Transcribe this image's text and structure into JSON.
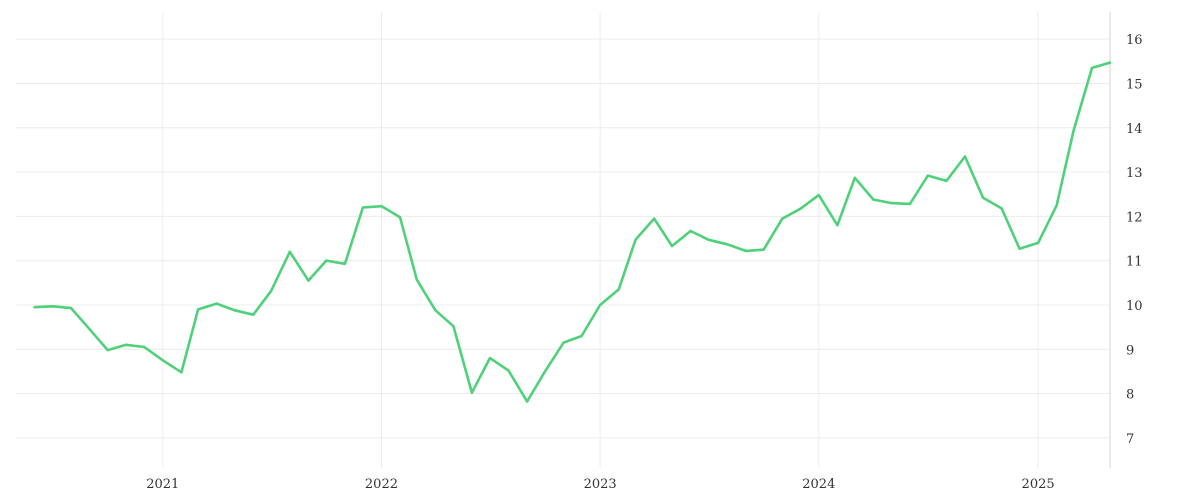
{
  "colors": {
    "series": "#4fd17a",
    "grid": "#ececec",
    "axis": "#d6d6d6",
    "text": "#333333"
  },
  "chart_data": {
    "type": "line",
    "title": "",
    "xlabel": "",
    "ylabel": "",
    "grid": true,
    "y_axis_side": "right",
    "xlim": [
      "2020-05-01",
      "2025-05-01"
    ],
    "ylim": [
      6.5,
      16.5
    ],
    "y_ticks": [
      7,
      8,
      9,
      10,
      11,
      12,
      13,
      14,
      15,
      16
    ],
    "x_ticks": [
      {
        "date": "2021-01-01",
        "label": "2021"
      },
      {
        "date": "2022-01-01",
        "label": "2022"
      },
      {
        "date": "2023-01-01",
        "label": "2023"
      },
      {
        "date": "2024-01-01",
        "label": "2024"
      },
      {
        "date": "2025-01-01",
        "label": "2025"
      }
    ],
    "series": [
      {
        "points": [
          [
            "2020-06-01",
            9.95
          ],
          [
            "2020-07-01",
            9.97
          ],
          [
            "2020-08-01",
            9.93
          ],
          [
            "2020-09-01",
            9.45
          ],
          [
            "2020-10-01",
            8.98
          ],
          [
            "2020-11-01",
            9.1
          ],
          [
            "2020-12-01",
            9.05
          ],
          [
            "2021-01-01",
            8.75
          ],
          [
            "2021-02-01",
            8.48
          ],
          [
            "2021-03-01",
            9.9
          ],
          [
            "2021-04-01",
            10.03
          ],
          [
            "2021-05-01",
            9.88
          ],
          [
            "2021-06-01",
            9.78
          ],
          [
            "2021-07-01",
            10.32
          ],
          [
            "2021-08-01",
            11.2
          ],
          [
            "2021-09-01",
            10.55
          ],
          [
            "2021-10-01",
            11.0
          ],
          [
            "2021-11-01",
            10.93
          ],
          [
            "2021-12-01",
            12.2
          ],
          [
            "2022-01-01",
            12.23
          ],
          [
            "2022-02-01",
            11.98
          ],
          [
            "2022-03-01",
            10.57
          ],
          [
            "2022-04-01",
            9.88
          ],
          [
            "2022-05-01",
            9.52
          ],
          [
            "2022-06-01",
            8.02
          ],
          [
            "2022-07-01",
            8.8
          ],
          [
            "2022-08-01",
            8.52
          ],
          [
            "2022-09-01",
            7.82
          ],
          [
            "2022-10-01",
            8.5
          ],
          [
            "2022-11-01",
            9.15
          ],
          [
            "2022-12-01",
            9.3
          ],
          [
            "2023-01-01",
            10.0
          ],
          [
            "2023-02-01",
            10.35
          ],
          [
            "2023-03-01",
            11.47
          ],
          [
            "2023-04-01",
            11.95
          ],
          [
            "2023-05-01",
            11.33
          ],
          [
            "2023-06-01",
            11.67
          ],
          [
            "2023-07-01",
            11.47
          ],
          [
            "2023-08-01",
            11.37
          ],
          [
            "2023-09-01",
            11.22
          ],
          [
            "2023-10-01",
            11.25
          ],
          [
            "2023-11-01",
            11.95
          ],
          [
            "2023-12-01",
            12.17
          ],
          [
            "2024-01-01",
            12.48
          ],
          [
            "2024-02-01",
            11.8
          ],
          [
            "2024-03-01",
            12.87
          ],
          [
            "2024-04-01",
            12.38
          ],
          [
            "2024-05-01",
            12.3
          ],
          [
            "2024-06-01",
            12.28
          ],
          [
            "2024-07-01",
            12.92
          ],
          [
            "2024-08-01",
            12.8
          ],
          [
            "2024-09-01",
            13.35
          ],
          [
            "2024-10-01",
            12.42
          ],
          [
            "2024-11-01",
            12.18
          ],
          [
            "2024-12-01",
            11.27
          ],
          [
            "2025-01-01",
            11.4
          ],
          [
            "2025-02-01",
            12.25
          ],
          [
            "2025-03-01",
            13.93
          ],
          [
            "2025-04-01",
            15.35
          ],
          [
            "2025-05-01",
            15.47
          ]
        ]
      }
    ]
  }
}
